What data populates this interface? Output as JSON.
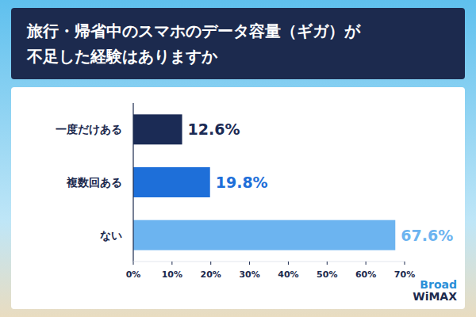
{
  "chart_data": {
    "type": "bar",
    "orientation": "horizontal",
    "title": "旅行・帰省中のスマホのデータ容量（ギガ）が不足した経験はありますか",
    "categories": [
      "一度だけある",
      "複数回ある",
      "ない"
    ],
    "values": [
      12.6,
      19.8,
      67.6
    ],
    "value_labels": [
      "12.6%",
      "19.8%",
      "67.6%"
    ],
    "colors": [
      "#1b2b55",
      "#1e6fd9",
      "#6cb4f0"
    ],
    "xlim": [
      0,
      70
    ],
    "xticks": [
      {
        "value": 0,
        "label": "0%"
      },
      {
        "value": 10,
        "label": "10%"
      },
      {
        "value": 20,
        "label": "20%"
      },
      {
        "value": 30,
        "label": "30%"
      },
      {
        "value": 40,
        "label": "40%"
      },
      {
        "value": 50,
        "label": "50%"
      },
      {
        "value": 60,
        "label": "60%"
      },
      {
        "value": 70,
        "label": "70%"
      }
    ],
    "grid": false,
    "data_labels": true,
    "annotations": [
      "Broad WiMAX"
    ]
  }
}
